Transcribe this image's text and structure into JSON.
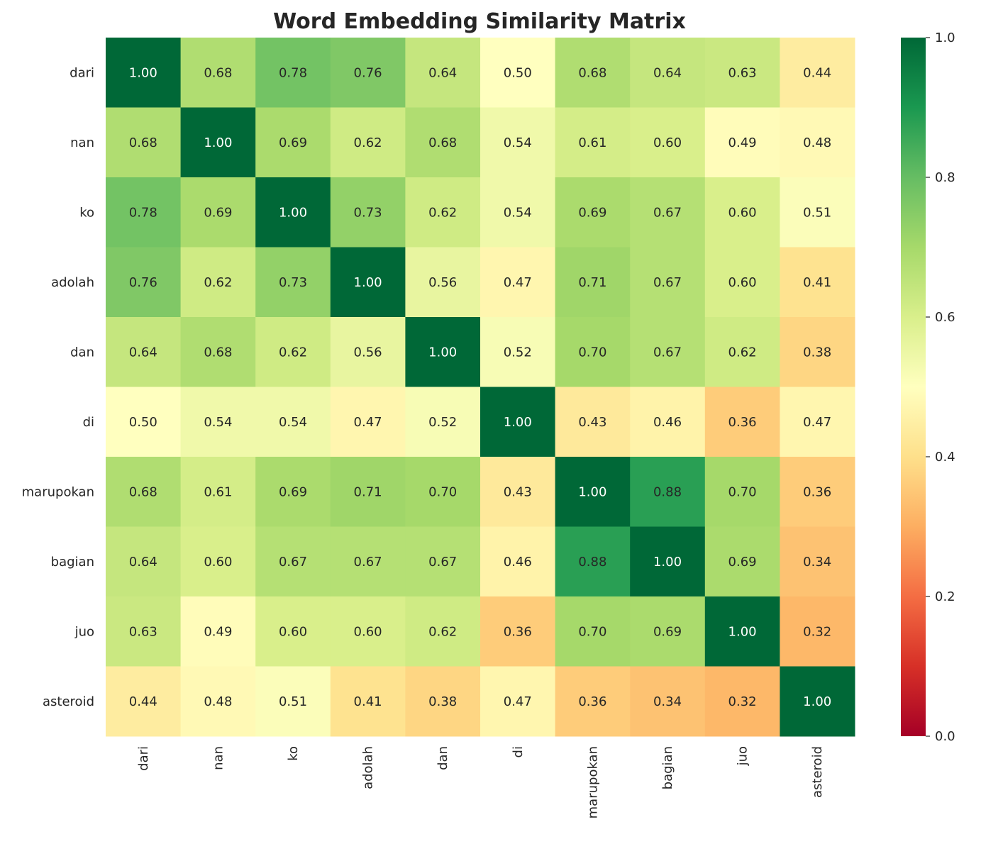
{
  "chart_data": {
    "type": "heatmap",
    "title": "Word Embedding Similarity Matrix",
    "xlabel": "",
    "ylabel": "",
    "colormap": "RdYlGn",
    "vmin": 0.0,
    "vmax": 1.0,
    "colorbar_ticks": [
      "0.0",
      "0.2",
      "0.4",
      "0.6",
      "0.8",
      "1.0"
    ],
    "labels": [
      "dari",
      "nan",
      "ko",
      "adolah",
      "dan",
      "di",
      "marupokan",
      "bagian",
      "juo",
      "asteroid"
    ],
    "values": [
      [
        1.0,
        0.68,
        0.78,
        0.76,
        0.64,
        0.5,
        0.68,
        0.64,
        0.63,
        0.44
      ],
      [
        0.68,
        1.0,
        0.69,
        0.62,
        0.68,
        0.54,
        0.61,
        0.6,
        0.49,
        0.48
      ],
      [
        0.78,
        0.69,
        1.0,
        0.73,
        0.62,
        0.54,
        0.69,
        0.67,
        0.6,
        0.51
      ],
      [
        0.76,
        0.62,
        0.73,
        1.0,
        0.56,
        0.47,
        0.71,
        0.67,
        0.6,
        0.41
      ],
      [
        0.64,
        0.68,
        0.62,
        0.56,
        1.0,
        0.52,
        0.7,
        0.67,
        0.62,
        0.38
      ],
      [
        0.5,
        0.54,
        0.54,
        0.47,
        0.52,
        1.0,
        0.43,
        0.46,
        0.36,
        0.47
      ],
      [
        0.68,
        0.61,
        0.69,
        0.71,
        0.7,
        0.43,
        1.0,
        0.88,
        0.7,
        0.36
      ],
      [
        0.64,
        0.6,
        0.67,
        0.67,
        0.67,
        0.46,
        0.88,
        1.0,
        0.69,
        0.34
      ],
      [
        0.63,
        0.49,
        0.6,
        0.6,
        0.62,
        0.36,
        0.7,
        0.69,
        1.0,
        0.32
      ],
      [
        0.44,
        0.48,
        0.51,
        0.41,
        0.38,
        0.47,
        0.36,
        0.34,
        0.32,
        1.0
      ]
    ]
  }
}
